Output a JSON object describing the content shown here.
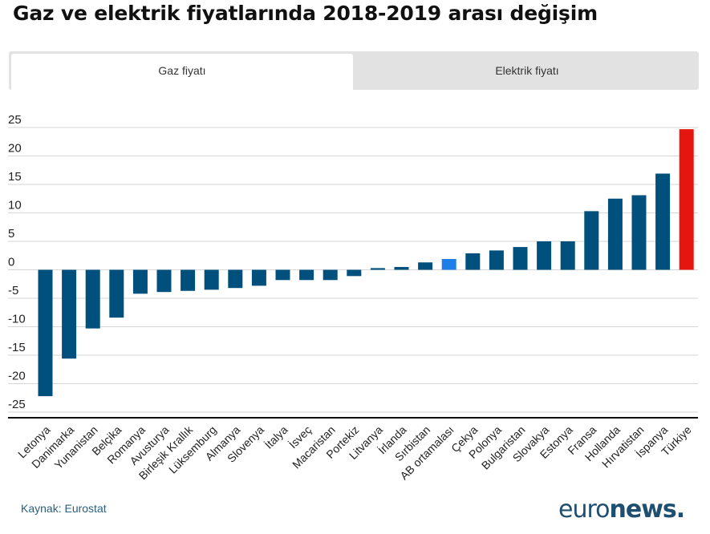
{
  "title": "Gaz ve elektrik fiyatlarında 2018-2019 arası değişim",
  "tabs": [
    {
      "label": "Gaz fiyatı",
      "active": true
    },
    {
      "label": "Elektrik fiyatı",
      "active": false
    }
  ],
  "source": "Kaynak: Eurostat",
  "logo": {
    "part1": "euro",
    "part2": "news."
  },
  "colors": {
    "default": "#00507e",
    "average": "#1e7ee8",
    "highlight": "#e5160f",
    "grid": "#d6d6d6"
  },
  "chart_data": {
    "type": "bar",
    "categories": [
      "Letonya",
      "Danimarka",
      "Yunanistan",
      "Belçika",
      "Romanya",
      "Avusturya",
      "Birleşik Krallık",
      "Lüksemburg",
      "Almanya",
      "Slovenya",
      "İtalya",
      "İsveç",
      "Macaristan",
      "Portekiz",
      "Litvanya",
      "İrlanda",
      "Sırbistan",
      "AB ortamalası",
      "Çekya",
      "Polonya",
      "Bulgaristan",
      "Slovakya",
      "Estonya",
      "Fransa",
      "Hollanda",
      "Hırvatistan",
      "İspanya",
      "Türkiye"
    ],
    "values": [
      -22.2,
      -15.6,
      -10.3,
      -8.4,
      -4.2,
      -3.9,
      -3.7,
      -3.5,
      -3.2,
      -2.8,
      -1.8,
      -1.8,
      -1.8,
      -1.1,
      0.3,
      0.5,
      1.3,
      1.9,
      2.9,
      3.4,
      4.0,
      5.0,
      5.0,
      10.3,
      12.5,
      13.1,
      16.9,
      24.7
    ],
    "average_category": "AB ortamalası",
    "highlight_category": "Türkiye",
    "yticks": [
      25,
      20,
      15,
      10,
      5,
      0,
      -5,
      -10,
      -15,
      -20,
      -25
    ],
    "ylim": [
      -26,
      26
    ],
    "grid": true
  }
}
